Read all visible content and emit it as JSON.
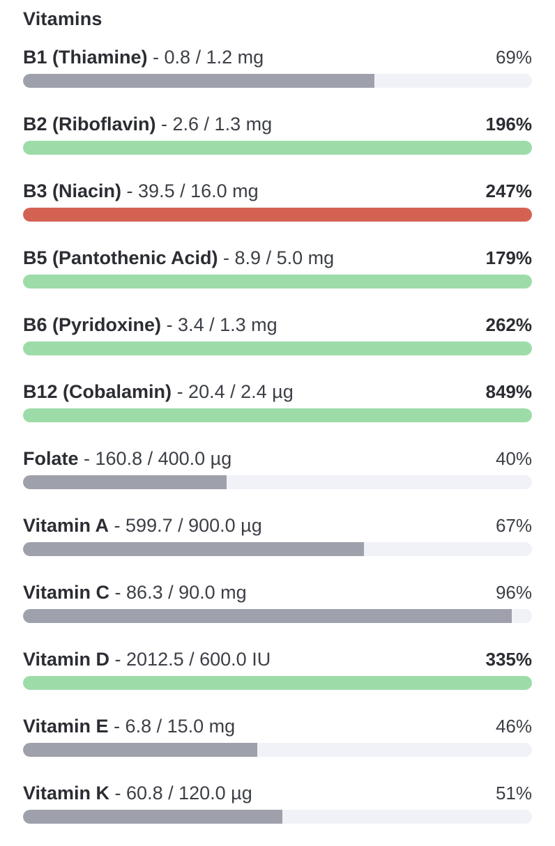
{
  "section": {
    "title": "Vitamins"
  },
  "colors": {
    "under_target": "#9ea0ab",
    "over_target": "#9ddca8",
    "excess": "#d46253",
    "track": "#f1f2f8"
  },
  "nutrients": [
    {
      "name": "B1 (Thiamine)",
      "amount": "- 0.8 / 1.2 mg",
      "percent": "69%",
      "fraction": 0.69,
      "status": "under"
    },
    {
      "name": "B2 (Riboflavin)",
      "amount": "- 2.6 / 1.3 mg",
      "percent": "196%",
      "fraction": 1.0,
      "status": "over"
    },
    {
      "name": "B3 (Niacin)",
      "amount": "- 39.5 / 16.0 mg",
      "percent": "247%",
      "fraction": 1.0,
      "status": "excess"
    },
    {
      "name": "B5 (Pantothenic Acid)",
      "amount": "- 8.9 / 5.0 mg",
      "percent": "179%",
      "fraction": 1.0,
      "status": "over"
    },
    {
      "name": "B6 (Pyridoxine)",
      "amount": "- 3.4 / 1.3 mg",
      "percent": "262%",
      "fraction": 1.0,
      "status": "over"
    },
    {
      "name": "B12 (Cobalamin)",
      "amount": "- 20.4 / 2.4 µg",
      "percent": "849%",
      "fraction": 1.0,
      "status": "over"
    },
    {
      "name": "Folate",
      "amount": "- 160.8 / 400.0 µg",
      "percent": "40%",
      "fraction": 0.4,
      "status": "under"
    },
    {
      "name": "Vitamin A",
      "amount": "- 599.7 / 900.0 µg",
      "percent": "67%",
      "fraction": 0.67,
      "status": "under"
    },
    {
      "name": "Vitamin C",
      "amount": "- 86.3 / 90.0 mg",
      "percent": "96%",
      "fraction": 0.96,
      "status": "under"
    },
    {
      "name": "Vitamin D",
      "amount": "- 2012.5 / 600.0 IU",
      "percent": "335%",
      "fraction": 1.0,
      "status": "over"
    },
    {
      "name": "Vitamin E",
      "amount": "- 6.8 / 15.0 mg",
      "percent": "46%",
      "fraction": 0.46,
      "status": "under"
    },
    {
      "name": "Vitamin K",
      "amount": "- 60.8 / 120.0 µg",
      "percent": "51%",
      "fraction": 0.51,
      "status": "under"
    }
  ]
}
